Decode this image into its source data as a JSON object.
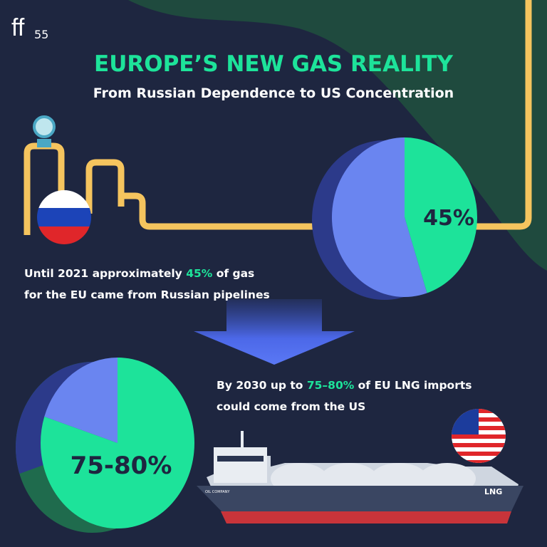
{
  "logo": {
    "letters": "ff",
    "number": "55"
  },
  "header": {
    "title": "EUROPE’S NEW GAS REALITY",
    "subtitle": "From Russian Dependence to US Concentration"
  },
  "pies": [
    {
      "value": 45,
      "label": "45%",
      "color": "#1de39a",
      "rest_color": "#6a85f0"
    },
    {
      "values": [
        75,
        80
      ],
      "label": "75-80%",
      "color": "#1de39a",
      "rest_color": "#6a85f0"
    }
  ],
  "captions": [
    {
      "before": "Until 2021 approximately ",
      "highlight": "45%",
      "after": " of gas",
      "line2": "for the EU came from Russian pipelines"
    },
    {
      "before": "By 2030 up to ",
      "highlight": "75–80%",
      "after": " of EU LNG imports",
      "line2": "could come from the US"
    }
  ],
  "ship": {
    "name": "LNG",
    "company": "OIL COMPANY"
  }
}
